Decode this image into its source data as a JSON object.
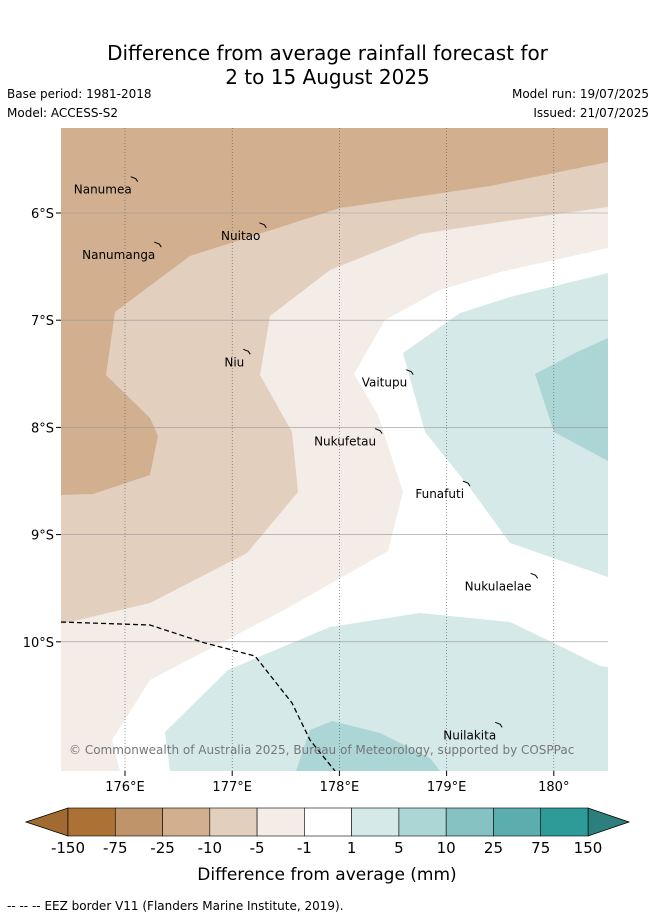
{
  "header": {
    "title_line1": "Difference from average rainfall forecast for",
    "title_line2": "2 to 15 August 2025",
    "base_period": "Base period: 1981-2018",
    "model": "Model: ACCESS-S2",
    "model_run": "Model run: 19/07/2025",
    "issued": "Issued: 21/07/2025"
  },
  "map": {
    "lon_ticks": [
      "176°E",
      "177°E",
      "178°E",
      "179°E",
      "180°"
    ],
    "lat_ticks": [
      "6°S",
      "7°S",
      "8°S",
      "9°S",
      "10°S"
    ],
    "copyright": "© Commonwealth of Australia 2025, Bureau of Meteorology, supported by COSPPac",
    "islands": [
      {
        "name": "Nanumea",
        "lon": 176.1,
        "lat": -5.68
      },
      {
        "name": "Nanumanga",
        "lon": 176.32,
        "lat": -6.29
      },
      {
        "name": "Nuitao",
        "lon": 177.3,
        "lat": -6.11
      },
      {
        "name": "Niu",
        "lon": 177.15,
        "lat": -7.29
      },
      {
        "name": "Vaitupu",
        "lon": 178.67,
        "lat": -7.48
      },
      {
        "name": "Nukufetau",
        "lon": 178.38,
        "lat": -8.03
      },
      {
        "name": "Funafuti",
        "lon": 179.2,
        "lat": -8.52
      },
      {
        "name": "Nukulaelae",
        "lon": 179.83,
        "lat": -9.38
      },
      {
        "name": "Nuilakita",
        "lon": 179.5,
        "lat": -10.77
      }
    ]
  },
  "colorbar": {
    "label": "Difference from average (mm)",
    "ticks": [
      "-150",
      "-75",
      "-25",
      "-10",
      "-5",
      "-1",
      "1",
      "5",
      "10",
      "25",
      "75",
      "150"
    ],
    "colors": [
      "#ac7134",
      "#c0946a",
      "#d2b08f",
      "#e2cfbe",
      "#f3ece7",
      "#ffffff",
      "#d5e9e8",
      "#acd5d5",
      "#86c2c2",
      "#5cadad",
      "#2e9b98"
    ],
    "under_color": "#a06a30",
    "over_color": "#2c7f7c"
  },
  "footer": {
    "legend_dash": "-- -- --",
    "eez_text": "EEZ border V11 (Flanders Marine Institute, 2019)."
  }
}
